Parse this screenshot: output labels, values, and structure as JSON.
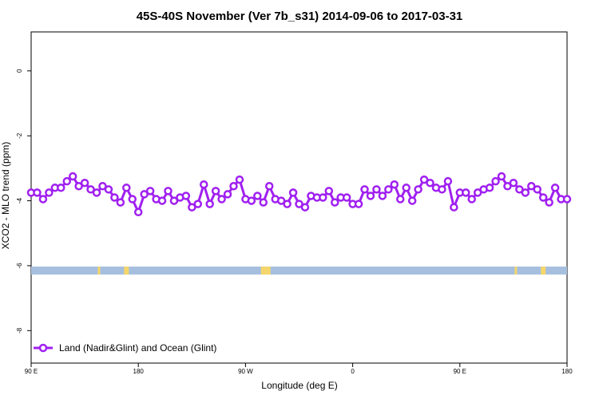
{
  "chart_data": {
    "type": "line",
    "title": "45S-40S November (Ver 7b_s31)   2014-09-06 to 2017-03-31",
    "xlabel": "Longitude (deg E)",
    "ylabel": "XCO2 - MLO trend (ppm)",
    "xlim": [
      90,
      540
    ],
    "ylim": [
      -9.0,
      1.2
    ],
    "x_ticks": [
      {
        "value": 90,
        "label": "90 E"
      },
      {
        "value": 180,
        "label": "180"
      },
      {
        "value": 270,
        "label": "90 W"
      },
      {
        "value": 360,
        "label": "0"
      },
      {
        "value": 450,
        "label": "90 E"
      },
      {
        "value": 540,
        "label": "180"
      }
    ],
    "y_ticks": [
      {
        "value": 0,
        "label": "0"
      },
      {
        "value": -2,
        "label": "-2"
      },
      {
        "value": -4,
        "label": "-4"
      },
      {
        "value": -6,
        "label": "-6"
      },
      {
        "value": -8,
        "label": "-8"
      }
    ],
    "legend": {
      "position": "bottom-left"
    },
    "series": [
      {
        "name": "Land (Nadir&Glint) and Ocean (Glint)",
        "color": "#a020f0",
        "x": [
          90,
          95,
          100,
          105,
          110,
          115,
          120,
          125,
          130,
          135,
          140,
          145,
          150,
          155,
          160,
          165,
          170,
          175,
          180,
          185,
          190,
          195,
          200,
          205,
          210,
          215,
          220,
          225,
          230,
          235,
          240,
          245,
          250,
          255,
          260,
          265,
          270,
          275,
          280,
          285,
          290,
          295,
          300,
          305,
          310,
          315,
          320,
          325,
          330,
          335,
          340,
          345,
          350,
          355,
          360,
          365,
          370,
          375,
          380,
          385,
          390,
          395,
          400,
          405,
          410,
          415,
          420,
          425,
          430,
          435,
          440,
          445,
          450,
          455,
          460,
          465,
          470,
          475,
          480,
          485,
          490,
          495,
          500,
          505,
          510,
          515,
          520,
          525,
          530,
          535,
          540
        ],
        "y": [
          -3.75,
          -3.75,
          -3.95,
          -3.75,
          -3.6,
          -3.6,
          -3.4,
          -3.25,
          -3.55,
          -3.45,
          -3.65,
          -3.75,
          -3.55,
          -3.65,
          -3.9,
          -4.05,
          -3.6,
          -3.95,
          -4.35,
          -3.8,
          -3.7,
          -3.95,
          -4.0,
          -3.7,
          -4.0,
          -3.9,
          -3.85,
          -4.2,
          -4.1,
          -3.5,
          -4.1,
          -3.7,
          -3.95,
          -3.8,
          -3.55,
          -3.35,
          -3.95,
          -4.0,
          -3.85,
          -4.05,
          -3.55,
          -3.95,
          -4.0,
          -4.1,
          -3.75,
          -4.1,
          -4.2,
          -3.85,
          -3.9,
          -3.9,
          -3.7,
          -4.05,
          -3.9,
          -3.9,
          -4.1,
          -4.1,
          -3.65,
          -3.85,
          -3.65,
          -3.85,
          -3.65,
          -3.5,
          -3.95,
          -3.6,
          -4.0,
          -3.65,
          -3.35,
          -3.45,
          -3.6,
          -3.65,
          -3.4,
          -4.2,
          -3.75,
          -3.75,
          -3.95,
          -3.75,
          -3.65,
          -3.6,
          -3.4,
          -3.25,
          -3.55,
          -3.45,
          -3.65,
          -3.75,
          -3.55,
          -3.65,
          -3.9,
          -4.05,
          -3.6,
          -3.95,
          -3.95
        ]
      }
    ],
    "surface_band": {
      "y": -6.15,
      "ocean_color": "#a7bfdf",
      "land_color": "#f5d66a",
      "land_segments": [
        [
          146,
          148
        ],
        [
          168,
          172
        ],
        [
          283,
          291
        ],
        [
          496,
          498
        ],
        [
          518,
          522
        ]
      ]
    }
  }
}
